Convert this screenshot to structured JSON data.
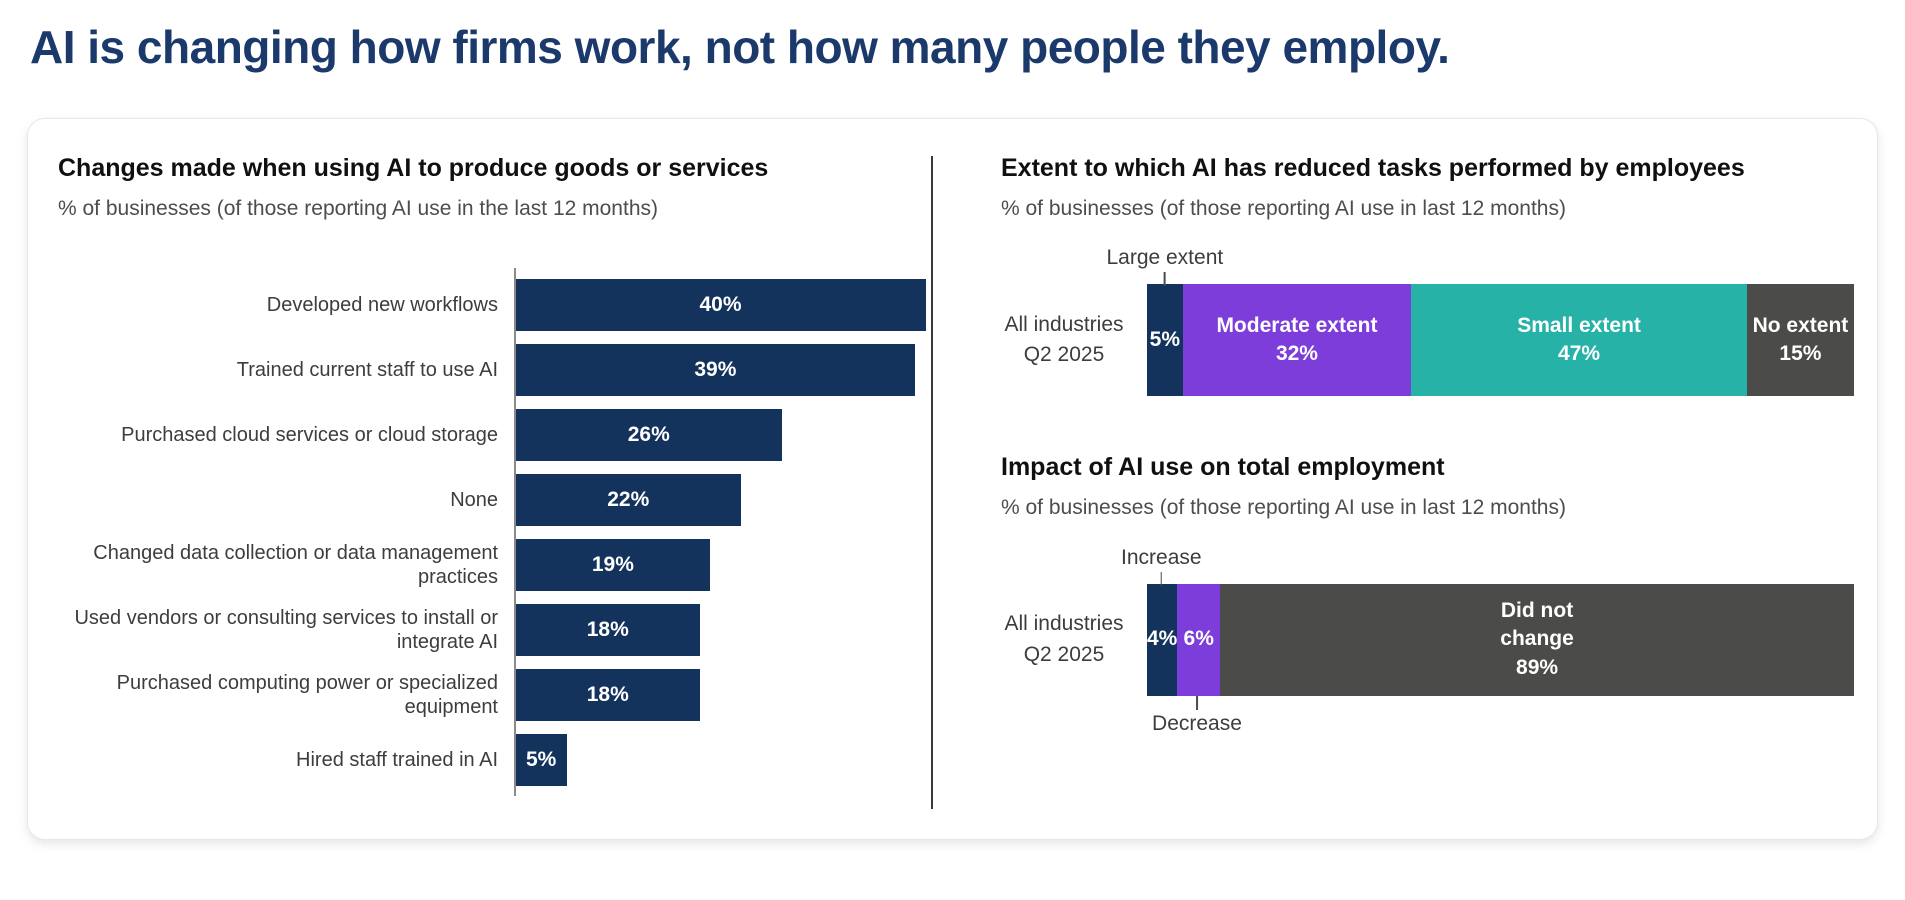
{
  "page_title": "AI is changing how firms work, not how many people they employ.",
  "theme": {
    "title_color": "#1B3A6B",
    "navy": "#13335D",
    "purple": "#7C3DDB",
    "teal": "#26B2A6",
    "dark_gray": "#4B4B49"
  },
  "chart_data": [
    {
      "type": "bar",
      "orientation": "horizontal",
      "title": "Changes made when using AI to produce goods or services",
      "subtitle": "% of businesses (of those reporting AI use in the last 12 months)",
      "unit": "%",
      "xlim": [
        0,
        40
      ],
      "grid": false,
      "bar_color": "#13335D",
      "categories": [
        "Developed new workflows",
        "Trained current staff to use AI",
        "Purchased cloud services or cloud storage",
        "None",
        "Changed data collection or data management practices",
        "Used vendors or consulting services to install or integrate AI",
        "Purchased computing power or specialized equipment",
        "Hired staff trained in AI"
      ],
      "values": [
        40,
        39,
        26,
        22,
        19,
        18,
        18,
        5
      ]
    },
    {
      "type": "bar",
      "orientation": "horizontal-stacked",
      "title": "Extent to which AI has reduced tasks performed by employees",
      "subtitle": "% of businesses (of those reporting AI use in last 12 months)",
      "unit": "%",
      "categories": [
        "All industries Q2 2025"
      ],
      "row_label_lines": [
        "All industries",
        "Q2 2025"
      ],
      "callout_above": "Large extent",
      "callout_below": "",
      "series": [
        {
          "name": "Large extent",
          "values": [
            5
          ],
          "color": "#13335D",
          "bar_label_lines": [
            "5%"
          ],
          "callout": "above"
        },
        {
          "name": "Moderate extent",
          "values": [
            32
          ],
          "color": "#7C3DDB",
          "bar_label_lines": [
            "Moderate extent",
            "32%"
          ],
          "callout": ""
        },
        {
          "name": "Small extent",
          "values": [
            47
          ],
          "color": "#26B2A6",
          "bar_label_lines": [
            "Small extent",
            "47%"
          ],
          "callout": ""
        },
        {
          "name": "No extent",
          "values": [
            15
          ],
          "color": "#4B4B49",
          "bar_label_lines": [
            "No extent",
            "15%"
          ],
          "callout": ""
        }
      ]
    },
    {
      "type": "bar",
      "orientation": "horizontal-stacked",
      "title": "Impact of AI use on total employment",
      "subtitle": "% of businesses (of those reporting AI use in last 12 months)",
      "unit": "%",
      "categories": [
        "All industries Q2 2025"
      ],
      "row_label_lines": [
        "All industries",
        "Q2 2025"
      ],
      "callout_above": "Increase",
      "callout_below": "Decrease",
      "series": [
        {
          "name": "Increase",
          "values": [
            4
          ],
          "color": "#13335D",
          "bar_label_lines": [
            "4%"
          ],
          "callout": "above"
        },
        {
          "name": "Decrease",
          "values": [
            6
          ],
          "color": "#7C3DDB",
          "bar_label_lines": [
            "6%"
          ],
          "callout": "below"
        },
        {
          "name": "Did not change",
          "values": [
            89
          ],
          "color": "#4B4B49",
          "bar_label_lines": [
            "Did not",
            "change",
            "89%"
          ],
          "callout": ""
        }
      ]
    }
  ]
}
